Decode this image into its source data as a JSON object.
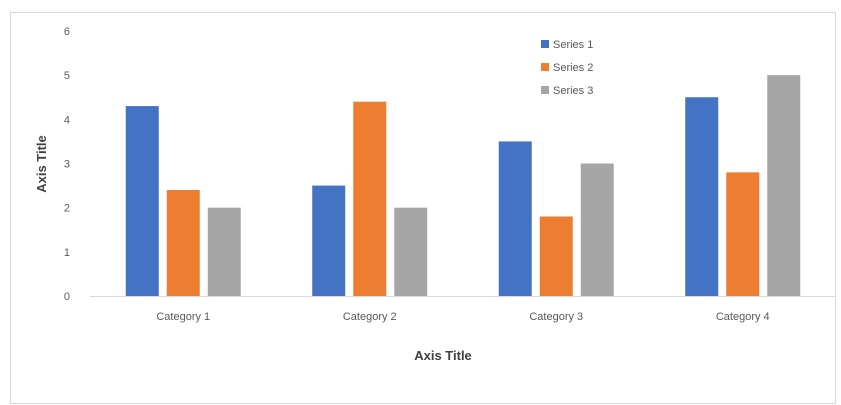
{
  "chart_data": {
    "type": "bar",
    "categories": [
      "Category 1",
      "Category 2",
      "Category 3",
      "Category 4"
    ],
    "series": [
      {
        "name": "Series 1",
        "values": [
          4.3,
          2.5,
          3.5,
          4.5
        ],
        "color": "#4472C4"
      },
      {
        "name": "Series 2",
        "values": [
          2.4,
          4.4,
          1.8,
          2.8
        ],
        "color": "#ED7D31"
      },
      {
        "name": "Series 3",
        "values": [
          2,
          2,
          3,
          5
        ],
        "color": "#A5A5A5"
      }
    ],
    "title": "",
    "xlabel": "Axis Title",
    "ylabel": "Axis Title",
    "ylim": [
      0,
      6
    ],
    "yticks": [
      "0",
      "1",
      "2",
      "3",
      "4",
      "5",
      "6"
    ],
    "grid": false,
    "legend_position": "top-right"
  }
}
